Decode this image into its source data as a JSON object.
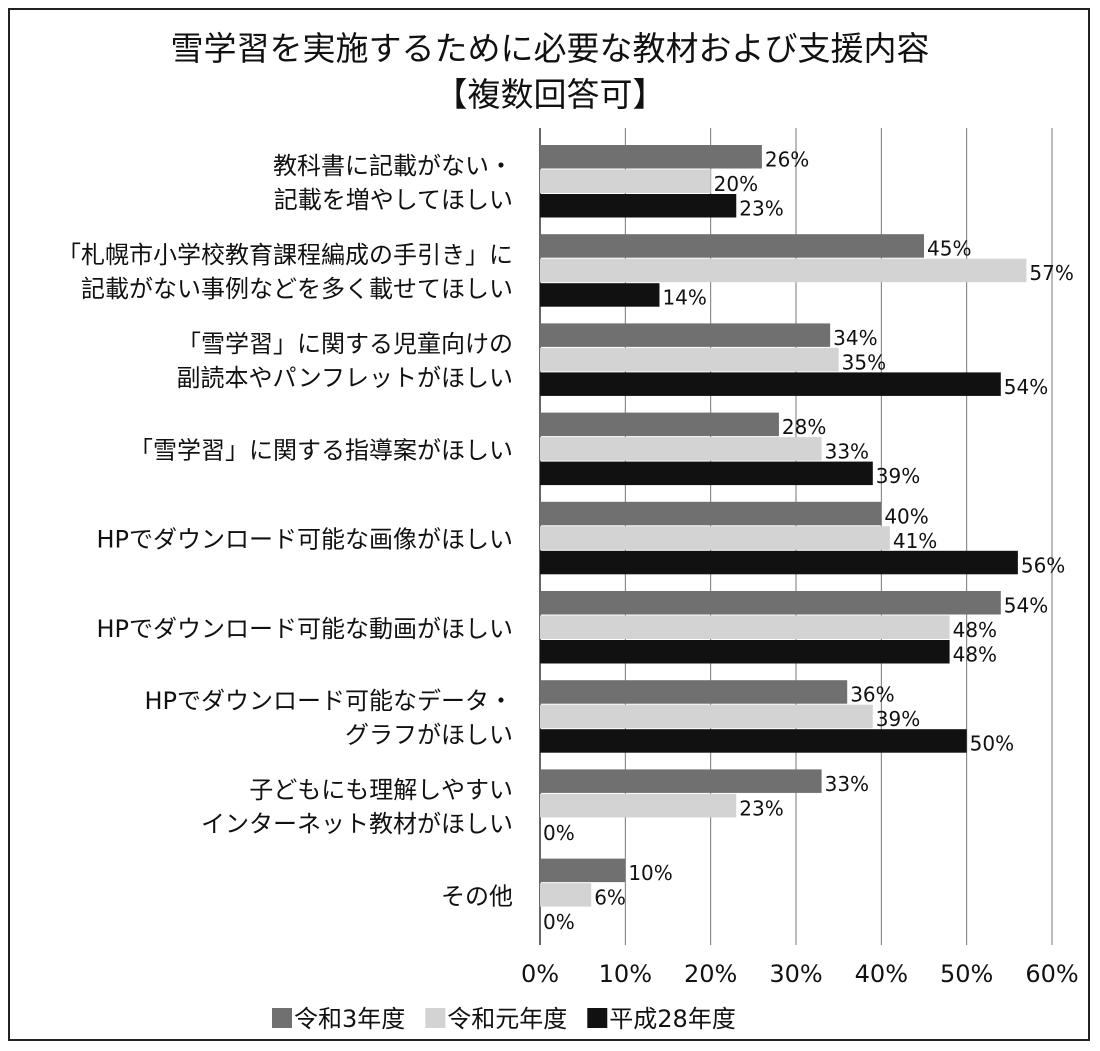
{
  "chart_data": {
    "type": "bar",
    "orientation": "horizontal",
    "title_lines": [
      "雪学習を実施するために必要な教材および支援内容",
      "【複数回答可】"
    ],
    "categories": [
      [
        "教科書に記載がない・",
        "記載を増やしてほしい"
      ],
      [
        "「札幌市小学校教育課程編成の手引き」に",
        "記載がない事例などを多く載せてほしい"
      ],
      [
        "「雪学習」に関する児童向けの",
        "副読本やパンフレットがほしい"
      ],
      [
        "「雪学習」に関する指導案がほしい"
      ],
      [
        "HPでダウンロード可能な画像がほしい"
      ],
      [
        "HPでダウンロード可能な動画がほしい"
      ],
      [
        "HPでダウンロード可能なデータ・",
        "グラフがほしい"
      ],
      [
        "子どもにも理解しやすい",
        "インターネット教材がほしい"
      ],
      [
        "その他"
      ]
    ],
    "series": [
      {
        "name": "令和3年度",
        "color": "#707070",
        "values": [
          26,
          45,
          34,
          28,
          40,
          54,
          36,
          33,
          10
        ]
      },
      {
        "name": "令和元年度",
        "color": "#d3d3d3",
        "values": [
          20,
          57,
          35,
          33,
          41,
          48,
          39,
          23,
          6
        ]
      },
      {
        "name": "平成28年度",
        "color": "#111111",
        "values": [
          23,
          14,
          54,
          39,
          56,
          48,
          50,
          0,
          0
        ]
      }
    ],
    "value_suffix": "%",
    "xlim": [
      0,
      60
    ],
    "xticks": [
      "0%",
      "10%",
      "20%",
      "30%",
      "40%",
      "50%",
      "60%"
    ],
    "grid": "vertical",
    "legend": "bottom"
  }
}
